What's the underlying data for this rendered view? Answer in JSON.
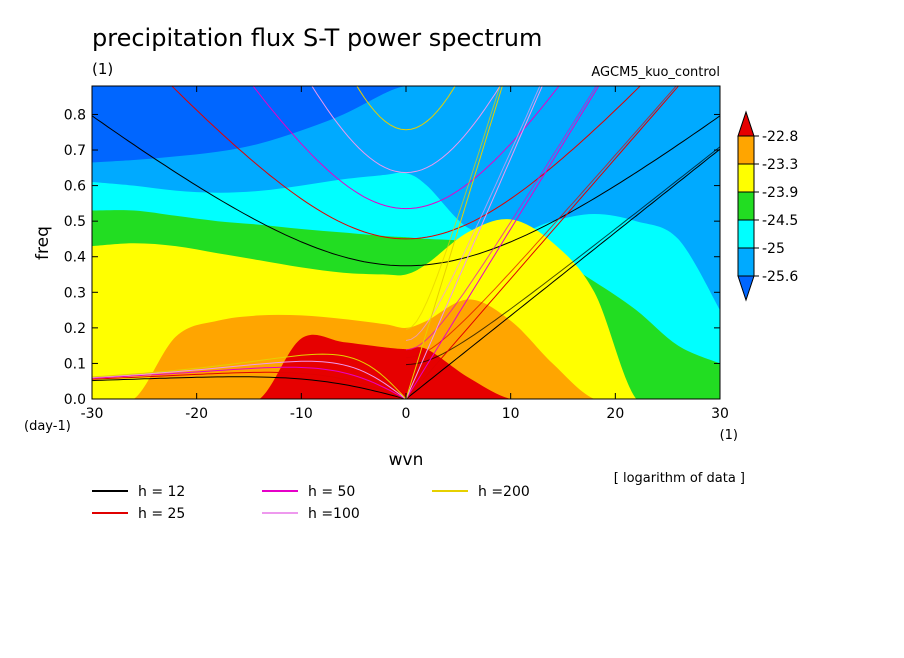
{
  "chart_data": {
    "type": "heatmap",
    "title": "precipitation flux S-T power spectrum",
    "subtitle_left": "(1)",
    "subtitle_right": "AGCM5_kuo_control",
    "xlabel": "wvn",
    "ylabel": "freq",
    "x_unit_label": "(1)",
    "y_unit_label": "(day-1)",
    "xlim": [
      -30,
      30
    ],
    "ylim": [
      0.0,
      0.88
    ],
    "x_ticks": [
      -30,
      -20,
      -10,
      0,
      10,
      20,
      30
    ],
    "x_tick_labels": [
      "-30",
      "-20",
      "-10",
      "0",
      "10",
      "20",
      "30"
    ],
    "y_ticks": [
      0.0,
      0.1,
      0.2,
      0.3,
      0.4,
      0.5,
      0.6,
      0.7,
      0.8
    ],
    "y_tick_labels": [
      "0.0",
      "0.1",
      "0.2",
      "0.3",
      "0.4",
      "0.5",
      "0.6",
      "0.7",
      "0.8"
    ],
    "note": "[ logarithm of data ]",
    "colorbar": {
      "levels": [
        "-22.8",
        "-23.3",
        "-23.9",
        "-24.5",
        "-25",
        "-25.6"
      ],
      "colors": [
        "#e60000",
        "#ffa500",
        "#ffff00",
        "#22dd22",
        "#00ffff",
        "#00aaff",
        "#0066ff"
      ],
      "band_values": [
        -22.6,
        -23.05,
        -23.6,
        -24.2,
        -24.75,
        -25.3,
        -25.9
      ]
    },
    "bands_levels": [
      {
        "x": [
          -30,
          -26,
          -22,
          -18,
          -14,
          -10,
          -6,
          -2,
          0,
          2,
          6,
          10,
          14,
          18,
          22,
          26,
          30
        ],
        "y": [
          0.665,
          0.672,
          0.682,
          0.695,
          0.718,
          0.755,
          0.8,
          0.86,
          0.88,
          0.88,
          0.88,
          0.88,
          0.88,
          0.88,
          0.88,
          0.88,
          0.88
        ]
      },
      {
        "x": [
          -30,
          -26,
          -22,
          -18,
          -14,
          -10,
          -6,
          -2,
          0,
          2,
          6,
          10,
          14,
          18,
          22,
          26,
          30
        ],
        "y": [
          0.61,
          0.6,
          0.586,
          0.58,
          0.585,
          0.6,
          0.618,
          0.63,
          0.635,
          0.6,
          0.48,
          0.46,
          0.5,
          0.52,
          0.5,
          0.45,
          0.25
        ]
      },
      {
        "x": [
          -30,
          -26,
          -22,
          -18,
          -14,
          -10,
          -6,
          -2,
          0,
          2,
          6,
          10,
          14,
          18,
          22,
          26,
          30
        ],
        "y": [
          0.53,
          0.53,
          0.515,
          0.5,
          0.49,
          0.478,
          0.468,
          0.458,
          0.455,
          0.45,
          0.445,
          0.44,
          0.4,
          0.33,
          0.25,
          0.15,
          0.1
        ]
      },
      {
        "x": [
          -30,
          -26,
          -22,
          -18,
          -14,
          -10,
          -6,
          -2,
          0,
          2,
          6,
          10,
          14,
          18,
          22,
          26,
          30
        ],
        "y": [
          0.43,
          0.438,
          0.43,
          0.41,
          0.39,
          0.37,
          0.355,
          0.35,
          0.35,
          0.38,
          0.47,
          0.505,
          0.44,
          0.3,
          0.0,
          0.0,
          0.0
        ]
      },
      {
        "x": [
          -30,
          -26,
          -22,
          -18,
          -14,
          -10,
          -6,
          -2,
          0,
          2,
          6,
          10,
          14,
          18,
          22,
          26,
          30
        ],
        "y": [
          0.0,
          0.0,
          0.175,
          0.22,
          0.235,
          0.235,
          0.225,
          0.21,
          0.2,
          0.22,
          0.28,
          0.22,
          0.1,
          0.0,
          0.0,
          0.0,
          0.0
        ]
      },
      {
        "x": [
          -30,
          -26,
          -22,
          -18,
          -14,
          -10,
          -6,
          -2,
          0,
          2,
          6,
          10,
          14,
          18,
          22,
          26,
          30
        ],
        "y": [
          0.0,
          0.0,
          0.0,
          0.0,
          0.0,
          0.17,
          0.16,
          0.145,
          0.14,
          0.14,
          0.06,
          0.0,
          0.0,
          0.0,
          0.0,
          0.0,
          0.0
        ]
      }
    ],
    "series": [
      {
        "name": "h = 12",
        "color": "#000000",
        "h": 12
      },
      {
        "name": "h = 25",
        "color": "#e00000",
        "h": 25
      },
      {
        "name": "h = 50",
        "color": "#e600c8",
        "h": 50
      },
      {
        "name": "h =100",
        "color": "#ee99ee",
        "h": 100
      },
      {
        "name": "h =200",
        "color": "#e6d000",
        "h": 200
      }
    ]
  }
}
